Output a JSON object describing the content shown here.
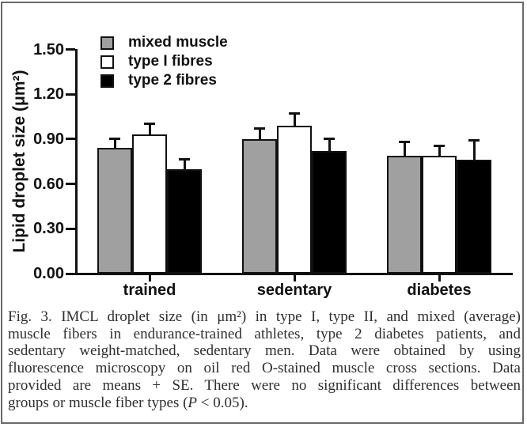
{
  "figure": {
    "caption": {
      "lines": [
        "Fig. 3. IMCL droplet size (in μm²) in type I, type II, and mixed (average)",
        "muscle fibers in endurance-trained athletes, type 2 diabetes patients, and",
        "sedentary weight-matched, sedentary men. Data were obtained by using",
        "fluorescence microscopy on oil red O-stained muscle cross sections. Data",
        "provided are means + SE. There were no significant differences between"
      ],
      "last_line": {
        "prefix": "groups or muscle fiber types (",
        "italic": "P",
        "suffix": " < 0.05)."
      }
    }
  },
  "chart_data": {
    "type": "bar",
    "title": "",
    "ylabel": "Lipid droplet size (μm²)",
    "xlabel": "",
    "ylim": [
      0,
      1.5
    ],
    "yticks": [
      "0.00",
      "0.30",
      "0.60",
      "0.90",
      "1.20",
      "1.50"
    ],
    "categories": [
      "trained",
      "sedentary",
      "diabetes"
    ],
    "series": [
      {
        "name": "mixed muscle",
        "fill": "#a0a0a0",
        "values": [
          0.84,
          0.9,
          0.79
        ],
        "se": [
          0.06,
          0.07,
          0.09
        ]
      },
      {
        "name": "type I fibres",
        "fill": "#ffffff",
        "values": [
          0.93,
          0.99,
          0.79
        ],
        "se": [
          0.07,
          0.08,
          0.06
        ]
      },
      {
        "name": "type 2 fibres",
        "fill": "#000000",
        "values": [
          0.7,
          0.82,
          0.76
        ],
        "se": [
          0.06,
          0.08,
          0.13
        ]
      }
    ],
    "error_style": "means + SE, upward caps",
    "legend_position": "top-left-inside",
    "grid": false
  },
  "colors": {
    "background": "#ffffff",
    "frame_border": "#6a6a6a",
    "axis": "#111111",
    "bar_border": "#111111",
    "gray_bar": "#a0a0a0",
    "caption_text": "#2f2f2f"
  }
}
